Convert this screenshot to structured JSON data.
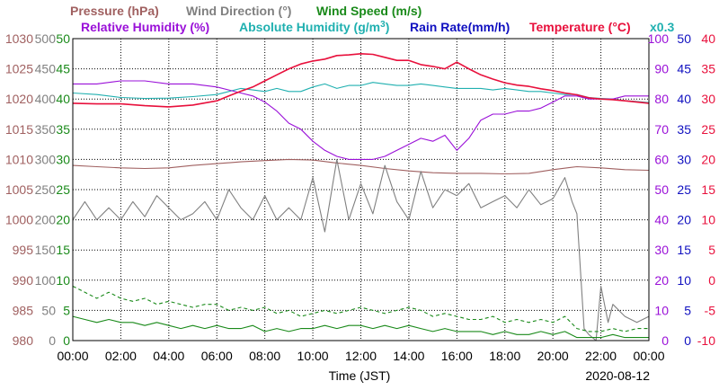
{
  "chart_data": {
    "type": "line",
    "date": "2020-08-12",
    "xlabel": "Time (JST)",
    "x_ticks": [
      "00:00",
      "02:00",
      "04:00",
      "06:00",
      "08:00",
      "10:00",
      "12:00",
      "14:00",
      "16:00",
      "18:00",
      "20:00",
      "22:00",
      "00:00"
    ],
    "legend": [
      {
        "label": "Pressure (hPa)",
        "color": "#a06060"
      },
      {
        "label": "Wind Direction (°)",
        "color": "#808080"
      },
      {
        "label": "Wind Speed (m/s)",
        "color": "#1a8a1a"
      },
      {
        "label": "Relative Humidity (%)",
        "color": "#9a10d8"
      },
      {
        "label": "Absolute Humidity (g/m",
        "sup": "3",
        "close": ")",
        "color": "#20b0b0"
      },
      {
        "label": "Rain Rate(mm/h)",
        "color": "#1010c0"
      },
      {
        "label": "Temperature (°C)",
        "color": "#e8103c"
      }
    ],
    "factor_label": "x0.3",
    "axes": {
      "pressure": {
        "label": "Pressure (hPa)",
        "ticks": [
          "1030",
          "1025",
          "1020",
          "1015",
          "1010",
          "1005",
          "1000",
          "995",
          "990",
          "985",
          "980"
        ],
        "range": [
          980,
          1030
        ],
        "color": "#a06060"
      },
      "wind_direction": {
        "label": "Wind Direction (°)",
        "ticks": [
          "500",
          "450",
          "400",
          "350",
          "300",
          "250",
          "200",
          "150",
          "100",
          "50",
          "0"
        ],
        "range": [
          0,
          500
        ],
        "color": "#808080"
      },
      "wind_speed": {
        "label": "Wind Speed (m/s)",
        "ticks": [
          "50",
          "45",
          "40",
          "35",
          "30",
          "25",
          "20",
          "15",
          "10",
          "5",
          "0"
        ],
        "range": [
          0,
          50
        ],
        "color": "#1a8a1a"
      },
      "humidity": {
        "label": "Relative Humidity (%)",
        "ticks": [
          "100",
          "90",
          "80",
          "70",
          "60",
          "50",
          "40",
          "30",
          "20",
          "10",
          "0"
        ],
        "range": [
          0,
          100
        ],
        "color": "#9a10d8"
      },
      "rain_rate": {
        "label": "Rain Rate(mm/h)",
        "ticks": [
          "50",
          "45",
          "40",
          "35",
          "30",
          "25",
          "20",
          "15",
          "10",
          "5",
          "0"
        ],
        "range": [
          0,
          50
        ],
        "color": "#1010c0"
      },
      "temperature": {
        "label": "Temperature (°C)",
        "ticks": [
          "40",
          "35",
          "30",
          "25",
          "20",
          "15",
          "10",
          "5",
          "0",
          "-5",
          "-10"
        ],
        "range": [
          -10,
          40
        ],
        "color": "#e8103c"
      }
    },
    "series": [
      {
        "name": "Pressure (hPa)",
        "axis": "pressure",
        "color": "#a06060",
        "style": "solid",
        "x": [
          0,
          1,
          2,
          3,
          4,
          5,
          6,
          7,
          8,
          9,
          10,
          11,
          12,
          13,
          14,
          15,
          16,
          17,
          18,
          19,
          20,
          21,
          22,
          23,
          24
        ],
        "y": [
          1009.0,
          1008.8,
          1008.6,
          1008.5,
          1008.6,
          1009.0,
          1009.3,
          1009.6,
          1009.8,
          1010.0,
          1009.9,
          1009.4,
          1009.0,
          1008.5,
          1008.1,
          1007.8,
          1007.7,
          1007.7,
          1007.6,
          1007.7,
          1008.3,
          1008.8,
          1008.6,
          1008.3,
          1008.2
        ]
      },
      {
        "name": "Wind Direction (°)",
        "axis": "wind_direction",
        "color": "#808080",
        "style": "solid",
        "x": [
          0,
          0.5,
          1,
          1.5,
          2,
          2.5,
          3,
          3.5,
          4,
          4.5,
          5,
          5.5,
          6,
          6.5,
          7,
          7.5,
          8,
          8.5,
          9,
          9.5,
          10,
          10.5,
          11,
          11.5,
          12,
          12.5,
          13,
          13.5,
          14,
          14.5,
          15,
          15.5,
          16,
          16.5,
          17,
          17.5,
          18,
          18.5,
          19,
          19.5,
          20,
          20.5,
          20.8,
          21,
          21.3,
          21.5,
          21.8,
          22,
          22.3,
          22.5,
          23,
          23.5,
          24
        ],
        "y": [
          200,
          230,
          200,
          220,
          200,
          230,
          205,
          240,
          220,
          200,
          210,
          230,
          200,
          250,
          220,
          200,
          240,
          200,
          220,
          200,
          270,
          180,
          300,
          200,
          260,
          210,
          290,
          230,
          200,
          280,
          220,
          250,
          240,
          260,
          220,
          230,
          240,
          220,
          250,
          225,
          235,
          270,
          230,
          210,
          20,
          10,
          0,
          90,
          30,
          60,
          40,
          30,
          40
        ]
      },
      {
        "name": "Wind Speed (m/s)",
        "axis": "wind_speed",
        "color": "#1a8a1a",
        "style": "dashed",
        "x": [
          0,
          0.5,
          1,
          1.5,
          2,
          2.5,
          3,
          3.5,
          4,
          4.5,
          5,
          5.5,
          6,
          6.5,
          7,
          7.5,
          8,
          8.5,
          9,
          9.5,
          10,
          10.5,
          11,
          11.5,
          12,
          12.5,
          13,
          13.5,
          14,
          14.5,
          15,
          15.5,
          16,
          16.5,
          17,
          17.5,
          18,
          18.5,
          19,
          19.5,
          20,
          20.5,
          21,
          21.5,
          22,
          22.5,
          23,
          23.5,
          24
        ],
        "y": [
          9,
          8,
          7,
          8,
          7,
          6.5,
          7,
          6,
          6.5,
          6,
          5.5,
          6,
          6,
          5,
          5.5,
          5,
          5.5,
          4.5,
          5,
          4,
          4.5,
          5,
          4.5,
          5,
          5.5,
          5,
          4.5,
          5,
          5.5,
          5,
          4,
          4.5,
          4,
          3.5,
          3.5,
          4,
          3,
          3.5,
          3,
          3.5,
          3,
          4,
          2,
          1.5,
          1.5,
          2,
          1.5,
          2,
          2
        ]
      },
      {
        "name": "Wind Speed (m/s)",
        "axis": "wind_speed",
        "color": "#1a8a1a",
        "style": "solid",
        "x": [
          0,
          0.5,
          1,
          1.5,
          2,
          2.5,
          3,
          3.5,
          4,
          4.5,
          5,
          5.5,
          6,
          6.5,
          7,
          7.5,
          8,
          8.5,
          9,
          9.5,
          10,
          10.5,
          11,
          11.5,
          12,
          12.5,
          13,
          13.5,
          14,
          14.5,
          15,
          15.5,
          16,
          16.5,
          17,
          17.5,
          18,
          18.5,
          19,
          19.5,
          20,
          20.5,
          21,
          21.5,
          22,
          22.5,
          23,
          23.5,
          24
        ],
        "y": [
          4,
          3.5,
          3,
          3.5,
          3,
          3,
          2.5,
          3,
          2.5,
          2,
          2.5,
          2,
          2.5,
          2,
          2,
          2.5,
          1.5,
          2,
          1.5,
          2,
          2,
          2.5,
          2,
          2.5,
          2.5,
          2,
          2.5,
          2,
          2.5,
          2,
          1.5,
          2,
          1.5,
          1.5,
          1.5,
          1,
          1.5,
          1,
          1,
          1.5,
          1,
          1.5,
          0.5,
          0.5,
          0.5,
          1,
          0.5,
          0.5,
          0.5
        ]
      },
      {
        "name": "Relative Humidity (%)",
        "axis": "humidity",
        "color": "#9a10d8",
        "style": "solid",
        "x": [
          0,
          1,
          2,
          3,
          4,
          5,
          6,
          6.5,
          7,
          7.5,
          8,
          8.5,
          9,
          9.5,
          10,
          10.5,
          11,
          11.5,
          12,
          12.5,
          13,
          13.5,
          14,
          14.5,
          15,
          15.5,
          16,
          16.5,
          17,
          17.5,
          18,
          18.5,
          19,
          19.5,
          20,
          20.5,
          21,
          21.5,
          22,
          22.5,
          23,
          23.5,
          24
        ],
        "y": [
          85,
          85,
          86,
          86,
          85,
          85,
          84,
          83,
          82,
          81,
          79,
          76,
          72,
          70,
          66,
          63,
          61,
          60,
          60,
          60,
          61,
          63,
          65,
          67,
          66,
          68,
          63,
          67,
          73,
          75,
          75,
          76,
          76,
          77,
          79,
          81,
          81,
          80,
          80,
          80,
          81,
          81,
          81
        ]
      },
      {
        "name": "Absolute Humidity (g/m3)",
        "axis": "humidity",
        "color": "#20b0b0",
        "style": "solid",
        "x": [
          0,
          1,
          2,
          3,
          4,
          5,
          6,
          6.5,
          7,
          7.5,
          8,
          8.5,
          9,
          9.5,
          10,
          10.5,
          11,
          11.5,
          12,
          12.5,
          13,
          13.5,
          14,
          14.5,
          15,
          15.5,
          16,
          16.5,
          17,
          17.5,
          18,
          18.5,
          19,
          19.5,
          20,
          20.5,
          21,
          21.5,
          22,
          22.5,
          23,
          23.5,
          24
        ],
        "y": [
          82,
          81.5,
          80.5,
          80.2,
          80.3,
          80.8,
          81.5,
          82.5,
          83.5,
          83,
          82.5,
          83.5,
          82.5,
          82.5,
          84,
          85,
          83.5,
          84.5,
          84.5,
          85.5,
          85,
          84.5,
          84.5,
          85,
          84.5,
          84,
          83.5,
          83.5,
          83.5,
          83,
          83.5,
          83,
          82.5,
          82.5,
          82,
          81.5,
          81.5,
          80.5,
          80.2,
          80,
          79.5,
          79.2,
          78.8
        ]
      },
      {
        "name": "Rain Rate(mm/h)",
        "axis": "rain_rate",
        "color": "#1010c0",
        "style": "solid",
        "x": [
          0,
          24
        ],
        "y": [
          0,
          0
        ]
      },
      {
        "name": "Temperature (°C)",
        "axis": "temperature",
        "color": "#e8103c",
        "style": "solid",
        "x": [
          0,
          1,
          2,
          3,
          4,
          5,
          6,
          6.5,
          7,
          7.5,
          8,
          8.5,
          9,
          9.5,
          10,
          10.5,
          11,
          11.5,
          12,
          12.5,
          13,
          13.5,
          14,
          14.5,
          15,
          15.5,
          16,
          16.5,
          17,
          17.5,
          18,
          18.5,
          19,
          19.5,
          20,
          20.5,
          21,
          21.5,
          22,
          22.5,
          23,
          23.5,
          24
        ],
        "y": [
          29.3,
          29.2,
          29.2,
          28.9,
          28.7,
          29.0,
          29.7,
          30.5,
          31.3,
          32.0,
          33.0,
          34.0,
          35.0,
          35.8,
          36.3,
          36.6,
          37.2,
          37.3,
          37.5,
          37.4,
          36.9,
          36.4,
          36.4,
          35.7,
          35.4,
          35.0,
          36.1,
          35.0,
          34.0,
          33.3,
          32.7,
          32.3,
          32.1,
          31.7,
          31.4,
          31.0,
          30.7,
          30.2,
          30.0,
          29.9,
          29.7,
          29.5,
          29.3
        ]
      }
    ]
  }
}
